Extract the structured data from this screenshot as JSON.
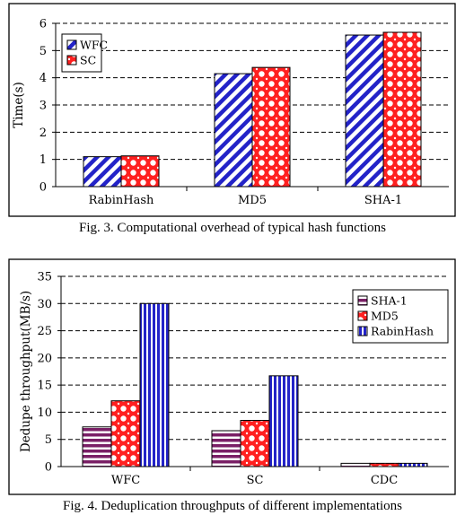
{
  "figures": [
    {
      "caption": "Fig. 3.  Computational overhead of typical hash functions",
      "chart_data": {
        "type": "bar",
        "categories": [
          "RabinHash",
          "MD5",
          "SHA-1"
        ],
        "series": [
          {
            "name": "WFC",
            "values": [
              1.1,
              4.15,
              5.57
            ],
            "pattern": "diag",
            "color": "#2323c8"
          },
          {
            "name": "SC",
            "values": [
              1.13,
              4.38,
              5.67
            ],
            "pattern": "dots",
            "color": "#ff2020"
          }
        ],
        "ylabel": "Time(s)",
        "xlabel": "",
        "ylim": [
          0,
          6
        ],
        "yticks": [
          "0",
          "1",
          "2",
          "3",
          "4",
          "5",
          "6"
        ],
        "grid": "dashed",
        "legend": "top-left"
      }
    },
    {
      "caption": "Fig. 4.  Deduplication throughputs of different implementations",
      "chart_data": {
        "type": "bar",
        "categories": [
          "WFC",
          "SC",
          "CDC"
        ],
        "series": [
          {
            "name": "SHA-1",
            "values": [
              7.3,
              6.6,
              0.6
            ],
            "pattern": "hstripes",
            "color": "#7a1f66"
          },
          {
            "name": "MD5",
            "values": [
              12.1,
              8.5,
              0.6
            ],
            "pattern": "dots",
            "color": "#ff2020"
          },
          {
            "name": "RabinHash",
            "values": [
              30.0,
              16.7,
              0.6
            ],
            "pattern": "vstripes",
            "color": "#2323c8"
          }
        ],
        "ylabel": "Dedupe throughput(MB/s)",
        "xlabel": "",
        "ylim": [
          0,
          35
        ],
        "yticks": [
          "0",
          "5",
          "10",
          "15",
          "20",
          "25",
          "30",
          "35"
        ],
        "grid": "dashed",
        "legend": "top-right"
      }
    }
  ]
}
